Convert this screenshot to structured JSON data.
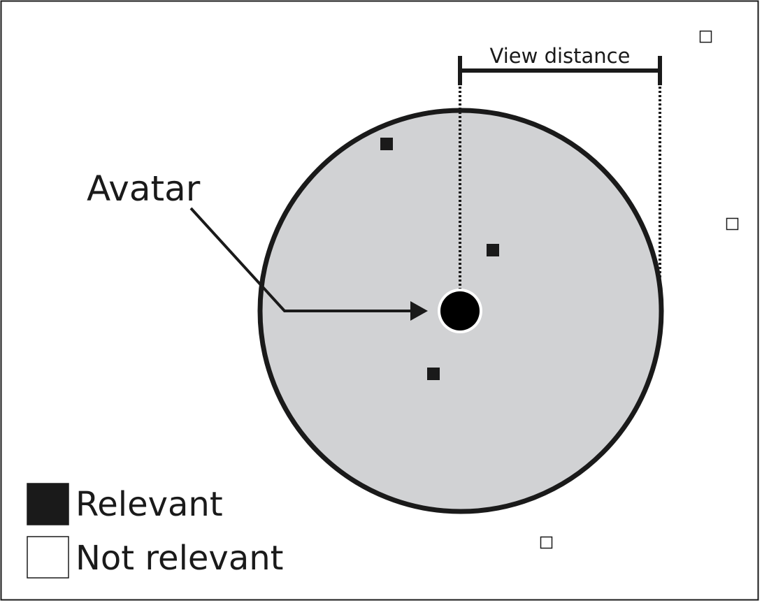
{
  "labels": {
    "view_distance": "View distance",
    "avatar": "Avatar"
  },
  "legend": {
    "relevant": "Relevant",
    "not_relevant": "Not relevant"
  },
  "colors": {
    "area_fill": "#d1d2d4",
    "ink": "#1a1a1a",
    "background": "#ffffff"
  }
}
